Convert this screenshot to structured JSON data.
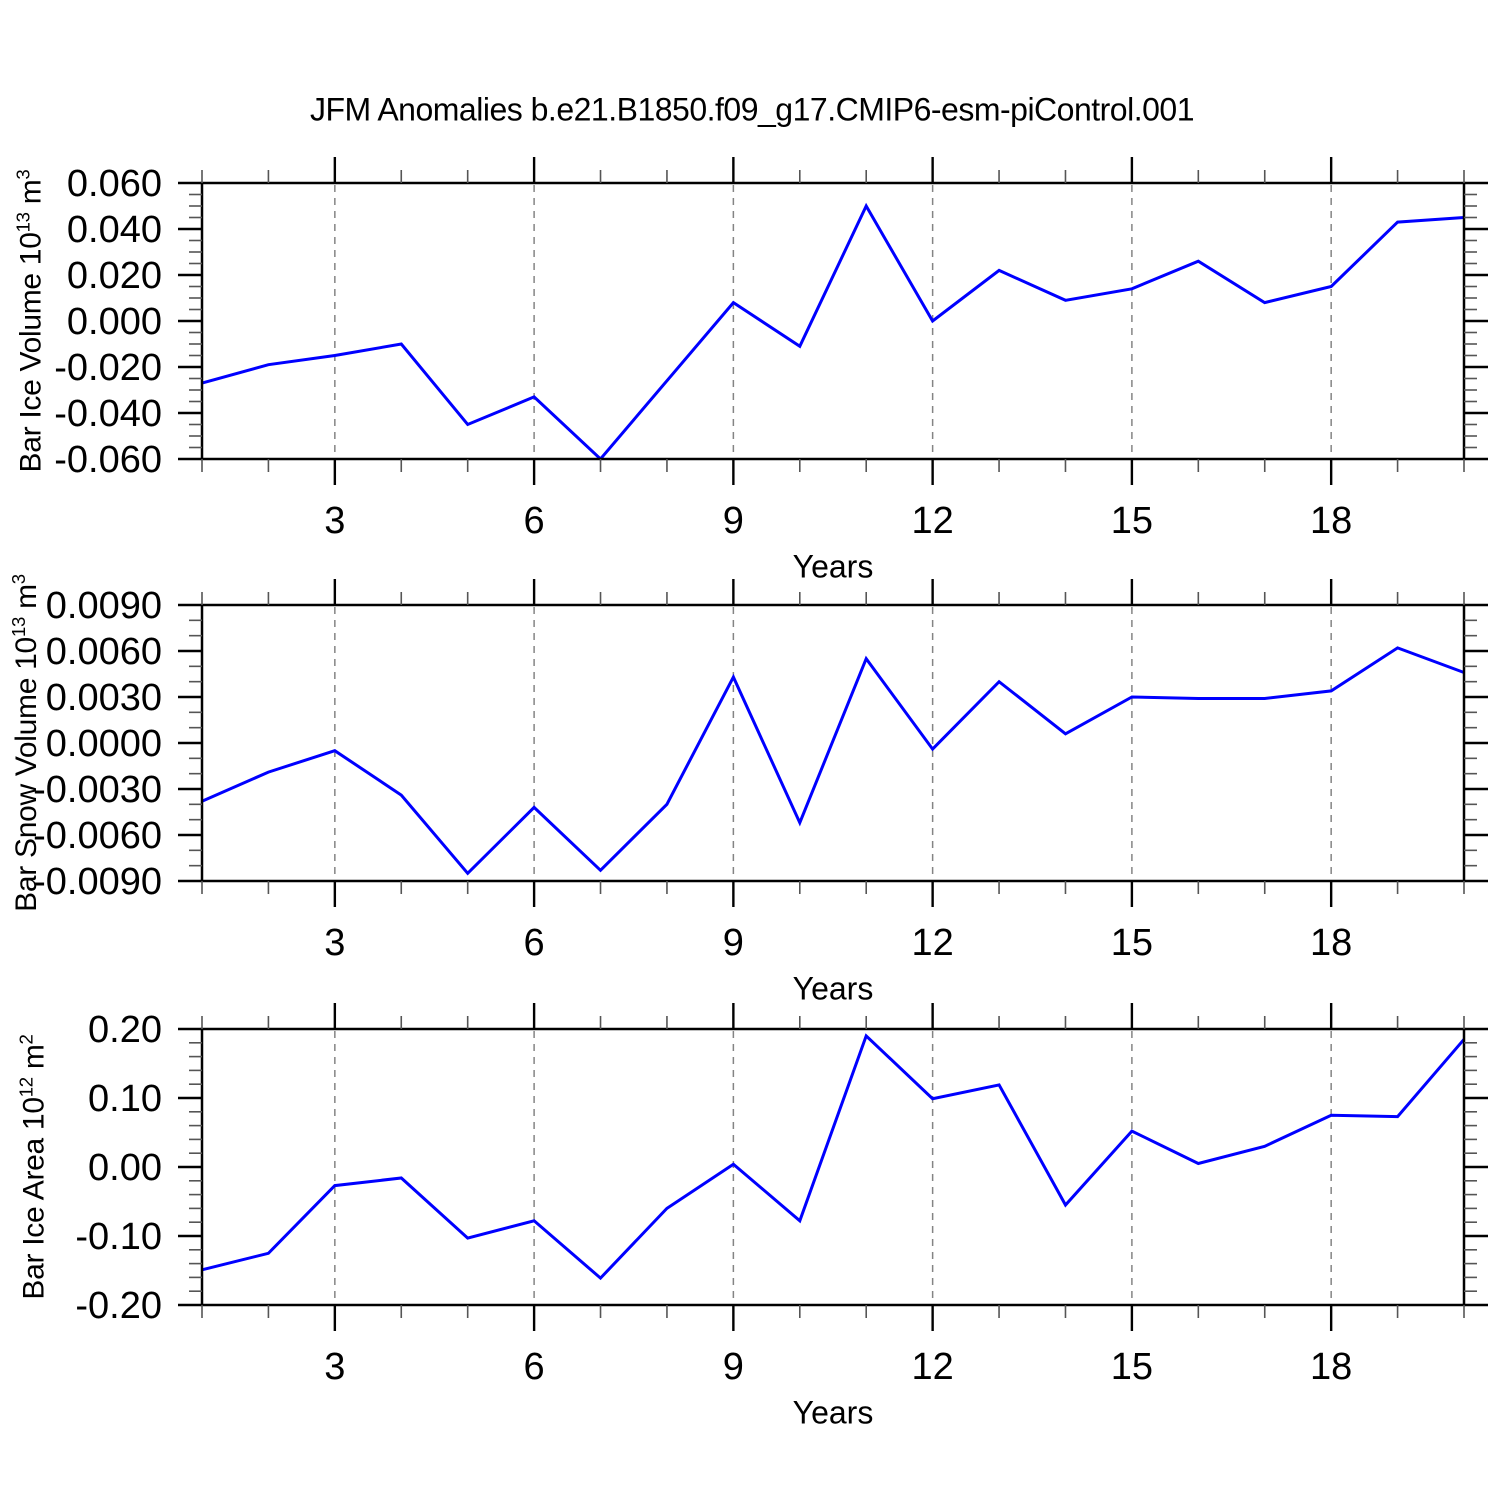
{
  "title": "JFM Anomalies b.e21.B1850.f09_g17.CMIP6-esm-piControl.001",
  "colors": {
    "line": "#0000ff",
    "frame": "#000000",
    "grid": "#848484",
    "minor_tick": "#555555"
  },
  "x_axis": {
    "label": "Years",
    "range": [
      1,
      20
    ],
    "tick_years": [
      3,
      6,
      9,
      12,
      15,
      18
    ],
    "tick_labels": [
      "3",
      "6",
      "9",
      "12",
      "15",
      "18"
    ],
    "minor_every": 1,
    "gridline_years": [
      3,
      6,
      9,
      12,
      15,
      18
    ]
  },
  "chart_data": [
    {
      "type": "line",
      "name": "bar-ice-volume",
      "ylabel": {
        "prefix": "Bar Ice Volume 10",
        "exp": "13",
        "unit": " m",
        "unit_exp": "3"
      },
      "xlabel": "Years",
      "ylim": [
        -0.06,
        0.06
      ],
      "yticks": [
        0.06,
        0.04,
        0.02,
        0.0,
        -0.02,
        -0.04,
        -0.06
      ],
      "ytick_labels": [
        "0.060",
        "0.040",
        "0.020",
        "0.000",
        "-0.020",
        "-0.040",
        "-0.060"
      ],
      "y_minor_step": 0.005,
      "grid": "vertical-dashed",
      "legend": "none",
      "x": [
        1,
        2,
        3,
        4,
        5,
        6,
        7,
        8,
        9,
        10,
        11,
        12,
        13,
        14,
        15,
        16,
        17,
        18,
        19,
        20
      ],
      "values": [
        -0.027,
        -0.019,
        -0.015,
        -0.01,
        -0.045,
        -0.033,
        -0.06,
        -0.026,
        0.008,
        -0.011,
        0.05,
        0.0,
        0.022,
        0.009,
        0.014,
        0.026,
        0.008,
        0.015,
        0.043,
        0.045
      ]
    },
    {
      "type": "line",
      "name": "bar-snow-volume",
      "ylabel": {
        "prefix": "Bar Snow Volume 10",
        "exp": "13",
        "unit": " m",
        "unit_exp": "3"
      },
      "xlabel": "Years",
      "ylim": [
        -0.009,
        0.009
      ],
      "yticks": [
        0.009,
        0.006,
        0.003,
        0.0,
        -0.003,
        -0.006,
        -0.009
      ],
      "ytick_labels": [
        "0.0090",
        "0.0060",
        "0.0030",
        "0.0000",
        "-0.0030",
        "-0.0060",
        "-0.0090"
      ],
      "y_minor_step": 0.001,
      "grid": "vertical-dashed",
      "legend": "none",
      "x": [
        1,
        2,
        3,
        4,
        5,
        6,
        7,
        8,
        9,
        10,
        11,
        12,
        13,
        14,
        15,
        16,
        17,
        18,
        19,
        20
      ],
      "values": [
        -0.0038,
        -0.0019,
        -0.0005,
        -0.0034,
        -0.0085,
        -0.0042,
        -0.0083,
        -0.004,
        0.0043,
        -0.0052,
        0.0055,
        -0.0004,
        0.004,
        0.0006,
        0.003,
        0.0029,
        0.0029,
        0.0034,
        0.0062,
        0.0046
      ]
    },
    {
      "type": "line",
      "name": "bar-ice-area",
      "ylabel": {
        "prefix": "Bar Ice Area 10",
        "exp": "12",
        "unit": " m",
        "unit_exp": "2"
      },
      "xlabel": "Years",
      "ylim": [
        -0.2,
        0.2
      ],
      "yticks": [
        0.2,
        0.1,
        0.0,
        -0.1,
        -0.2
      ],
      "ytick_labels": [
        "0.20",
        "0.10",
        "0.00",
        "-0.10",
        "-0.20"
      ],
      "y_minor_step": 0.02,
      "grid": "vertical-dashed",
      "legend": "none",
      "x": [
        1,
        2,
        3,
        4,
        5,
        6,
        7,
        8,
        9,
        10,
        11,
        12,
        13,
        14,
        15,
        16,
        17,
        18,
        19,
        20
      ],
      "values": [
        -0.149,
        -0.125,
        -0.027,
        -0.016,
        -0.103,
        -0.078,
        -0.161,
        -0.06,
        0.004,
        -0.078,
        0.19,
        0.099,
        0.119,
        -0.055,
        0.052,
        0.005,
        0.03,
        0.075,
        0.073,
        0.185
      ]
    }
  ]
}
